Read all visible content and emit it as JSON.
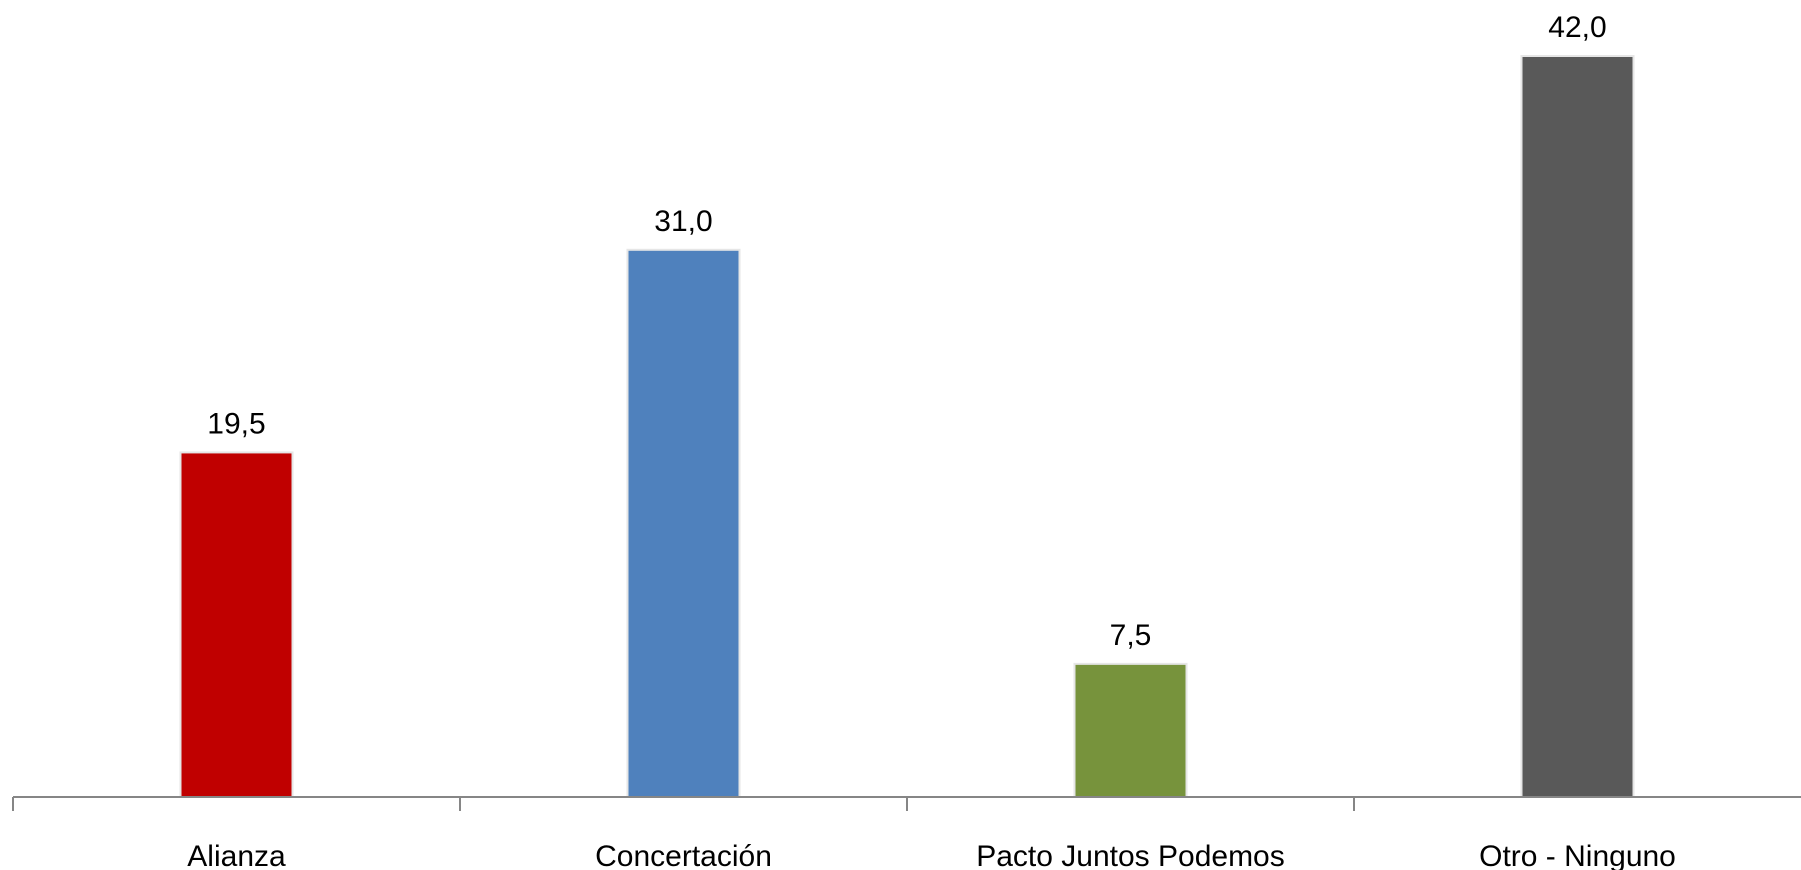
{
  "chart_data": {
    "type": "bar",
    "title": "",
    "xlabel": "",
    "ylabel": "",
    "categories": [
      "Alianza",
      "Concertación",
      "Pacto Juntos Podemos",
      "Otro - Ninguno"
    ],
    "values": [
      19.5,
      31.0,
      7.5,
      42.0
    ],
    "value_labels": [
      "19,5",
      "31,0",
      "7,5",
      "42,0"
    ],
    "bar_colors": [
      "#c00000",
      "#4f81bd",
      "#77933c",
      "#595959"
    ],
    "ylim": [
      0,
      42
    ],
    "grid": false,
    "legend": "none",
    "axis_color": "#868686"
  }
}
